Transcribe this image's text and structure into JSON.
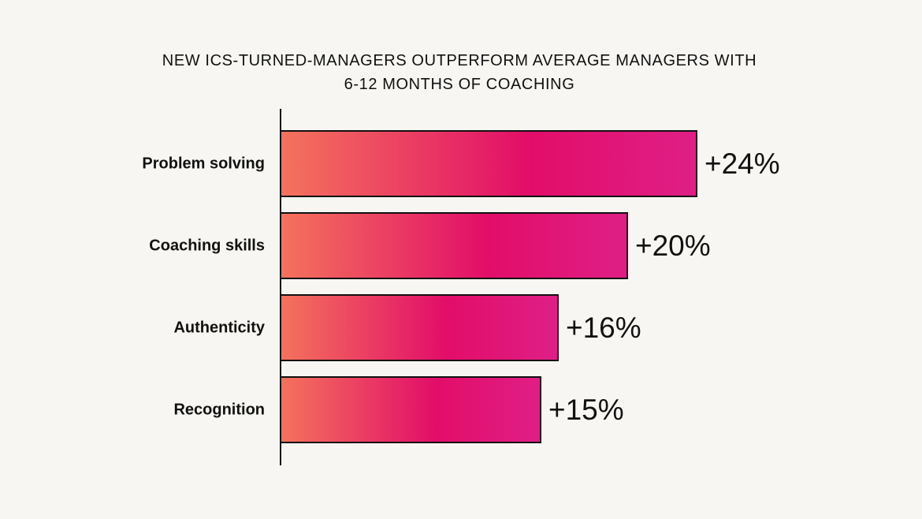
{
  "chart_data": {
    "type": "bar",
    "orientation": "horizontal",
    "title_lines": [
      "NEW ICS-TURNED-MANAGERS OUTPERFORM AVERAGE MANAGERS WITH",
      "6-12 MONTHS OF COACHING"
    ],
    "categories": [
      "Problem solving",
      "Coaching skills",
      "Authenticity",
      "Recognition"
    ],
    "values": [
      24,
      20,
      16,
      15
    ],
    "data_labels": [
      "+24%",
      "+20%",
      "+16%",
      "+15%"
    ],
    "xlabel": "",
    "ylabel": "",
    "xlim": [
      0,
      24
    ],
    "grid": false,
    "legend": "none",
    "colors": {
      "gradient_start": "#f4735c",
      "gradient_mid": "#e20d69",
      "gradient_end": "#df1f86",
      "bar_outline": "#111111",
      "axis": "#111111",
      "background": "#f7f6f2"
    }
  }
}
